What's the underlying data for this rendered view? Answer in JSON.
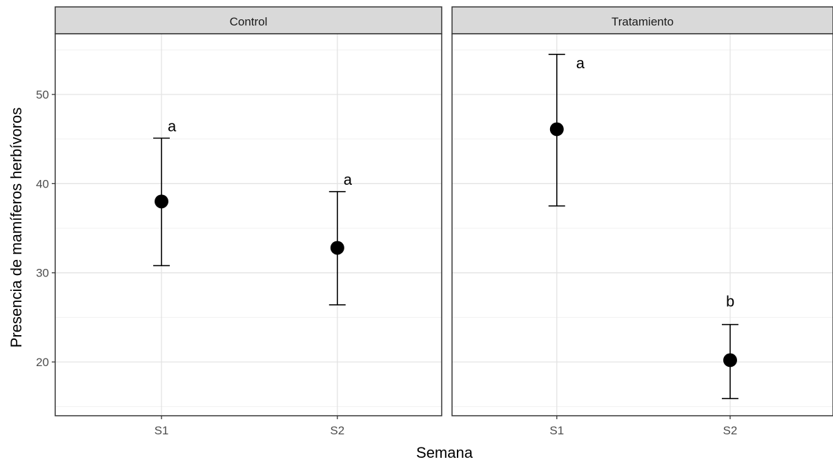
{
  "chart_data": {
    "type": "scatter",
    "subtype": "point-with-error-bars, faceted",
    "xlabel": "Semana",
    "ylabel": "Presencia de mamíferos herbívoros",
    "categories": [
      "S1",
      "S2"
    ],
    "yticks": [
      20,
      30,
      40,
      50
    ],
    "ylim": [
      14,
      56.5
    ],
    "grid": true,
    "point_color": "#000000",
    "strip_fill": "#d9d9d9",
    "facets": [
      {
        "name": "Control",
        "points": [
          {
            "x": "S1",
            "y": 38.0,
            "ymin": 30.8,
            "ymax": 45.1,
            "label": "a"
          },
          {
            "x": "S2",
            "y": 32.8,
            "ymin": 26.4,
            "ymax": 39.1,
            "label": "a"
          }
        ]
      },
      {
        "name": "Tratamiento",
        "points": [
          {
            "x": "S1",
            "y": 46.1,
            "ymin": 37.5,
            "ymax": 54.5,
            "label": "a"
          },
          {
            "x": "S2",
            "y": 20.2,
            "ymin": 15.9,
            "ymax": 24.2,
            "label": "b"
          }
        ]
      }
    ]
  }
}
